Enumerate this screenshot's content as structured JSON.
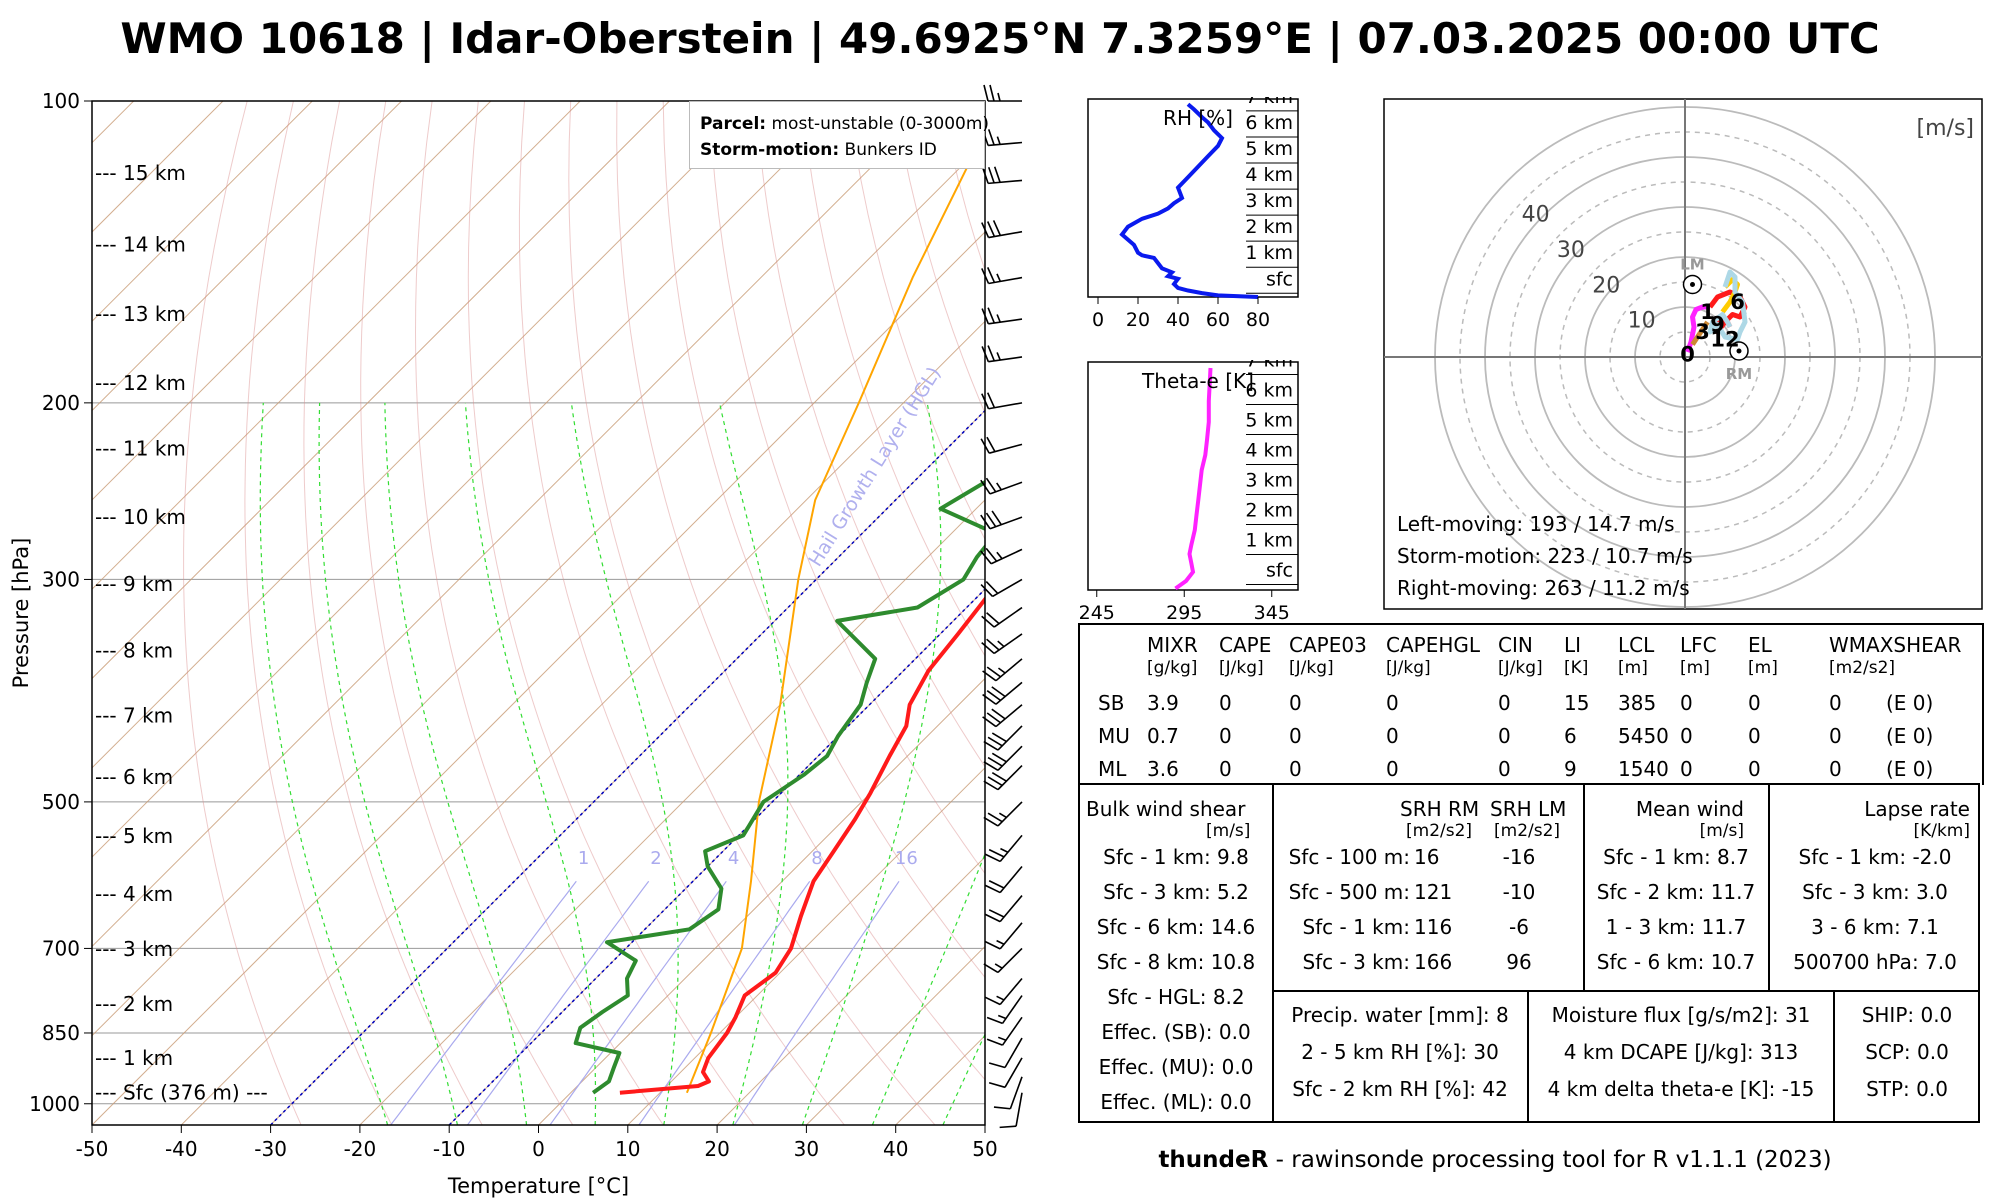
{
  "title": "WMO 10618 | Idar-Oberstein | 49.6925°N 7.3259°E | 07.03.2025 00:00 UTC",
  "footer": {
    "bold": "thundeR",
    "rest": " - rawinsonde processing tool for R v1.1.1 (2023)"
  },
  "chart_data": [
    {
      "type": "line",
      "name": "skew-t",
      "xlabel": "Temperature [°C]",
      "ylabel": "Pressure [hPa]",
      "x_ticks": [
        -50,
        -40,
        -30,
        -20,
        -10,
        0,
        10,
        20,
        30,
        40,
        50
      ],
      "y_ticks": [
        100,
        200,
        300,
        500,
        700,
        850,
        1000
      ],
      "xlim": [
        -50,
        50
      ],
      "ylim": [
        1050,
        100
      ],
      "yscale": "log",
      "height_labels": [
        {
          "text": "--- 15 km",
          "p": 118
        },
        {
          "text": "--- 14 km",
          "p": 139
        },
        {
          "text": "--- 13 km",
          "p": 163
        },
        {
          "text": "--- 12 km",
          "p": 191
        },
        {
          "text": "--- 11 km",
          "p": 222
        },
        {
          "text": "--- 10 km",
          "p": 260
        },
        {
          "text": "--- 9 km",
          "p": 303
        },
        {
          "text": "--- 8 km",
          "p": 353
        },
        {
          "text": "--- 7 km",
          "p": 410
        },
        {
          "text": "--- 6 km",
          "p": 472
        },
        {
          "text": "--- 5 km",
          "p": 541
        },
        {
          "text": "--- 4 km",
          "p": 618
        },
        {
          "text": "--- 3 km",
          "p": 701
        },
        {
          "text": "--- 2 km",
          "p": 795
        },
        {
          "text": "--- 1 km",
          "p": 900
        },
        {
          "text": "--- Sfc (376 m) ---",
          "p": 975
        }
      ],
      "mixing_ratio_labels": [
        "1",
        "2",
        "4",
        "8",
        "16"
      ],
      "mixing_ratios": [
        1,
        2,
        4,
        8,
        16
      ],
      "hgl_label": "Hail Growth Layer (HGL)",
      "hgl_isotherms": [
        -10,
        -30
      ],
      "temperature": [
        [
          975,
          5.5
        ],
        [
          960,
          13.5
        ],
        [
          950,
          14.2
        ],
        [
          930,
          12.5
        ],
        [
          900,
          11.5
        ],
        [
          850,
          10.8
        ],
        [
          820,
          10
        ],
        [
          780,
          8.6
        ],
        [
          740,
          9.5
        ],
        [
          700,
          8.5
        ],
        [
          650,
          6
        ],
        [
          600,
          3.5
        ],
        [
          560,
          2.4
        ],
        [
          520,
          1.2
        ],
        [
          490,
          0
        ],
        [
          450,
          -2
        ],
        [
          420,
          -3.5
        ],
        [
          400,
          -5.5
        ],
        [
          370,
          -7.2
        ],
        [
          340,
          -8
        ],
        [
          310,
          -9
        ],
        [
          290,
          -10.5
        ],
        [
          270,
          -11.6
        ],
        [
          250,
          -12
        ],
        [
          235,
          -11.5
        ],
        [
          215,
          -10
        ],
        [
          200,
          -7.5
        ],
        [
          185,
          -4
        ],
        [
          170,
          -2.5
        ],
        [
          155,
          1
        ],
        [
          140,
          2.5
        ],
        [
          125,
          5
        ],
        [
          110,
          6
        ],
        [
          100,
          8
        ]
      ],
      "dewpoint": [
        [
          975,
          2.5
        ],
        [
          950,
          3
        ],
        [
          920,
          2
        ],
        [
          890,
          1
        ],
        [
          870,
          -5
        ],
        [
          840,
          -6.2
        ],
        [
          810,
          -5.5
        ],
        [
          780,
          -4.5
        ],
        [
          750,
          -6.5
        ],
        [
          720,
          -7.5
        ],
        [
          690,
          -12.8
        ],
        [
          670,
          -5
        ],
        [
          640,
          -4
        ],
        [
          610,
          -6
        ],
        [
          580,
          -10
        ],
        [
          560,
          -12
        ],
        [
          540,
          -9.5
        ],
        [
          500,
          -11
        ],
        [
          470,
          -9.5
        ],
        [
          450,
          -9
        ],
        [
          430,
          -10
        ],
        [
          400,
          -11
        ],
        [
          380,
          -12.8
        ],
        [
          360,
          -14.5
        ],
        [
          330,
          -23
        ],
        [
          320,
          -15.5
        ],
        [
          300,
          -13.5
        ],
        [
          285,
          -14.5
        ],
        [
          270,
          -15
        ],
        [
          255,
          -24
        ],
        [
          240,
          -22
        ],
        [
          230,
          -20.5
        ],
        [
          220,
          -21.5
        ],
        [
          210,
          -20
        ],
        [
          200,
          -23.5
        ],
        [
          185,
          -26
        ],
        [
          175,
          -27
        ],
        [
          165,
          -26.5
        ],
        [
          150,
          -27
        ],
        [
          135,
          -24
        ],
        [
          120,
          -22
        ],
        [
          110,
          -20
        ],
        [
          100,
          -17.5
        ]
      ],
      "parcel": [
        [
          975,
          13
        ],
        [
          850,
          9
        ],
        [
          700,
          3
        ],
        [
          600,
          -3.5
        ],
        [
          500,
          -11.5
        ],
        [
          400,
          -20
        ],
        [
          300,
          -32
        ],
        [
          250,
          -39
        ],
        [
          200,
          -45
        ],
        [
          150,
          -53
        ],
        [
          100,
          -63
        ]
      ],
      "legend": {
        "parcel_label": "Parcel:",
        "parcel_value": "most-unstable (0-3000m)",
        "storm_label": "Storm-motion:",
        "storm_value": "Bunkers ID"
      },
      "wind_barbs": [
        [
          100,
          270,
          25
        ],
        [
          110,
          265,
          25
        ],
        [
          120,
          265,
          30
        ],
        [
          135,
          260,
          30
        ],
        [
          150,
          260,
          25
        ],
        [
          165,
          262,
          25
        ],
        [
          180,
          262,
          25
        ],
        [
          200,
          260,
          20
        ],
        [
          220,
          255,
          20
        ],
        [
          240,
          250,
          25
        ],
        [
          260,
          250,
          30
        ],
        [
          280,
          245,
          25
        ],
        [
          300,
          240,
          20
        ],
        [
          320,
          235,
          20
        ],
        [
          340,
          235,
          25
        ],
        [
          360,
          230,
          25
        ],
        [
          380,
          230,
          30
        ],
        [
          400,
          230,
          30
        ],
        [
          420,
          225,
          30
        ],
        [
          440,
          225,
          30
        ],
        [
          460,
          225,
          30
        ],
        [
          500,
          225,
          25
        ],
        [
          540,
          220,
          25
        ],
        [
          580,
          220,
          20
        ],
        [
          620,
          220,
          20
        ],
        [
          660,
          220,
          15
        ],
        [
          700,
          225,
          15
        ],
        [
          750,
          220,
          15
        ],
        [
          780,
          215,
          15
        ],
        [
          820,
          215,
          15
        ],
        [
          860,
          210,
          10
        ],
        [
          900,
          210,
          10
        ],
        [
          940,
          200,
          10
        ],
        [
          975,
          190,
          8
        ]
      ]
    },
    {
      "type": "line",
      "name": "rh-profile",
      "title": "RH [%]",
      "x_ticks": [
        0,
        20,
        40,
        60,
        80
      ],
      "xlim": [
        -5,
        100
      ],
      "height_labels": [
        "7 km",
        "6 km",
        "5 km",
        "4 km",
        "3 km",
        "2 km",
        "1 km",
        "sfc"
      ],
      "ylim": [
        0,
        7.6
      ],
      "series": [
        {
          "x": [
            80,
            60,
            52,
            45,
            40,
            38,
            40,
            35,
            37,
            32,
            30,
            28,
            22,
            20,
            18,
            12,
            15,
            22,
            30,
            35,
            38,
            42,
            40,
            45,
            50,
            55,
            60,
            62,
            58,
            55,
            52,
            48,
            45
          ],
          "y": [
            0,
            0.06,
            0.15,
            0.25,
            0.35,
            0.5,
            0.7,
            0.8,
            0.95,
            1.1,
            1.3,
            1.5,
            1.6,
            1.7,
            2,
            2.4,
            2.7,
            3,
            3.2,
            3.4,
            3.6,
            3.8,
            4.2,
            4.6,
            5,
            5.4,
            5.8,
            6.1,
            6.4,
            6.7,
            6.9,
            7.2,
            7.4
          ]
        }
      ]
    },
    {
      "type": "line",
      "name": "theta-e-profile",
      "title": "Theta-e [K]",
      "x_ticks": [
        245,
        295,
        345
      ],
      "xlim": [
        240,
        360
      ],
      "height_labels": [
        "7 km",
        "6 km",
        "5 km",
        "4 km",
        "3 km",
        "2 km",
        "1 km",
        "sfc"
      ],
      "ylim": [
        0,
        7.6
      ],
      "series": [
        {
          "x": [
            290,
            296,
            300,
            299,
            298,
            299,
            301,
            302,
            303,
            304,
            305,
            307,
            308,
            309,
            309,
            310
          ],
          "y": [
            0.05,
            0.3,
            0.6,
            0.9,
            1.2,
            1.5,
            2,
            2.5,
            3,
            3.5,
            4,
            4.5,
            5,
            5.6,
            6.3,
            7.4
          ]
        }
      ]
    },
    {
      "type": "line",
      "name": "hodograph",
      "unit": "[m/s]",
      "rings": [
        10,
        20,
        30,
        40
      ],
      "ring_labels": [
        "10",
        "20",
        "30",
        "40"
      ],
      "range": [
        -10,
        40
      ],
      "markers": [
        {
          "label": "LM",
          "u": 1.5,
          "v": 14.5
        },
        {
          "label": "RM",
          "u": 10.8,
          "v": 1.2
        }
      ],
      "height_markers": [
        {
          "label": "0",
          "u": 0.5,
          "v": 0.5
        },
        {
          "label": "1",
          "u": 4.5,
          "v": 9
        },
        {
          "label": "3",
          "u": 3.5,
          "v": 5
        },
        {
          "label": "6",
          "u": 10.5,
          "v": 11
        },
        {
          "label": "9",
          "u": 6.5,
          "v": 6.5
        },
        {
          "label": "12",
          "u": 8,
          "v": 3.5
        }
      ],
      "segments": [
        {
          "color": "#ff22ff",
          "u": [
            0.5,
            1.2,
            1.8,
            1.5,
            2.2,
            3.5,
            5
          ],
          " v": [],
          "v": [
            1,
            3,
            6,
            8,
            9.5,
            10,
            10
          ]
        },
        {
          "color": "#cc8833",
          "u": [
            1.5,
            2.5,
            3.5,
            4.5
          ],
          "v": [
            2.5,
            4,
            5.5,
            7
          ]
        },
        {
          "color": "#ff1a1a",
          "u": [
            5,
            6.5,
            9,
            11,
            12,
            11,
            9.5,
            8,
            6.5,
            6.5,
            7.5,
            8.5,
            9
          ],
          "v": [
            10,
            12,
            13,
            12,
            10,
            8,
            8.5,
            7,
            5,
            6.5,
            8,
            7,
            6
          ]
        },
        {
          "color": "#ffcc00",
          "u": [
            7.5,
            9,
            10,
            10.5,
            9.5,
            8
          ],
          "v": [
            9,
            11,
            13,
            14.5,
            15.5,
            14
          ]
        },
        {
          "color": "#add8e6",
          "u": [
            8,
            9,
            10,
            10,
            11.5,
            12,
            11,
            10.5,
            8,
            6.5,
            5,
            5.5,
            7.5,
            8.5,
            9
          ],
          "v": [
            14,
            17,
            16,
            13,
            11,
            7,
            5,
            3.5,
            4,
            6.5,
            5,
            7,
            8.5,
            7,
            6
          ]
        }
      ],
      "storm_text": [
        "Left-moving: 193 / 14.7 m/s",
        "Storm-motion: 223 / 10.7 m/s",
        "Right-moving: 263 / 11.2 m/s"
      ]
    },
    {
      "type": "table",
      "name": "parcel-table",
      "headers": [
        "MIXR",
        "CAPE",
        "CAPE03",
        "CAPEHGL",
        "CIN",
        "LI",
        "LCL",
        "LFC",
        "EL",
        "WMAXSHEAR"
      ],
      "units": [
        "[g/kg]",
        "[J/kg]",
        "[J/kg]",
        "[J/kg]",
        "[J/kg]",
        "[K]",
        "[m]",
        "[m]",
        "[m]",
        "[m2/s2]"
      ],
      "rows": [
        {
          "label": "SB",
          "values": [
            "3.9",
            "0",
            "0",
            "0",
            "0",
            "15",
            "385",
            "0",
            "0",
            "0",
            "(E 0)"
          ]
        },
        {
          "label": "MU",
          "values": [
            "0.7",
            "0",
            "0",
            "0",
            "0",
            "6",
            "5450",
            "0",
            "0",
            "0",
            "(E 0)"
          ]
        },
        {
          "label": "ML",
          "values": [
            "3.6",
            "0",
            "0",
            "0",
            "0",
            "9",
            "1540",
            "0",
            "0",
            "0",
            "(E 0)"
          ]
        }
      ]
    }
  ],
  "bulk_shear": {
    "title": "Bulk wind shear",
    "unit": "[m/s]",
    "rows": [
      "Sfc - 1 km: 9.8",
      "Sfc - 3 km: 5.2",
      "Sfc - 6 km: 14.6",
      "Sfc - 8 km: 10.8",
      "Sfc - HGL: 8.2",
      "Effec. (SB): 0.0",
      "Effec. (MU): 0.0",
      "Effec. (ML): 0.0"
    ]
  },
  "srh": {
    "h1": "SRH RM",
    "h2": "SRH LM",
    "u1": "[m2/s2]",
    "u2": "[m2/s2]",
    "rows": [
      [
        "Sfc - 100 m:",
        "16",
        "-16"
      ],
      [
        "Sfc - 500 m:",
        "121",
        "-10"
      ],
      [
        "Sfc - 1 km:",
        "116",
        "-6"
      ],
      [
        "Sfc - 3 km:",
        "166",
        "96"
      ]
    ]
  },
  "mean_wind": {
    "title": "Mean wind",
    "unit": "[m/s]",
    "rows": [
      "Sfc - 1 km: 8.7",
      "Sfc - 2 km: 11.7",
      "1 - 3 km: 11.7",
      "Sfc - 6 km: 10.7"
    ]
  },
  "lapse_rate": {
    "title": "Lapse rate",
    "unit": "[K/km]",
    "rows": [
      "Sfc - 1 km: -2.0",
      "Sfc - 3 km: 3.0",
      "3 - 6 km: 7.1",
      "500700 hPa: 7.0"
    ]
  },
  "moisture_left": {
    "rows": [
      "Precip. water [mm]: 8",
      "2 - 5 km RH [%]: 30",
      "Sfc - 2 km RH [%]: 42"
    ]
  },
  "moisture_right": {
    "rows": [
      "Moisture flux [g/s/m2]: 31",
      "4 km DCAPE [J/kg]: 313",
      "4 km delta theta-e [K]: -15"
    ]
  },
  "composites": {
    "rows": [
      "SHIP: 0.0",
      "SCP: 0.0",
      "STP: 0.0"
    ]
  }
}
